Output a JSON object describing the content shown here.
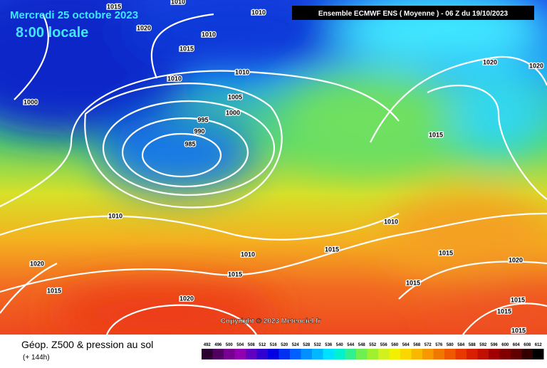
{
  "header": {
    "date": "Mercredi 25 octobre 2023",
    "time": "8:00 locale",
    "run": "Ensemble ECMWF ENS  ( Moyenne )  - 06 Z du 19/10/2023"
  },
  "isobar_labels": [
    1015,
    1010,
    1010,
    1020,
    1010,
    1015,
    1010,
    1010,
    1005,
    1000,
    1000,
    995,
    990,
    985,
    1015,
    1020,
    1020,
    1010,
    1010,
    1015,
    1015,
    1010,
    1020,
    1020,
    1015,
    1015,
    1015,
    1020,
    1015,
    1015,
    1015
  ],
  "copyright": "Copyright © 2023 Meteociel.fr",
  "footer": {
    "title": "Géop. Z500 & pression au sol",
    "lead": "(+ 144h)"
  },
  "scale": [
    492,
    496,
    500,
    504,
    508,
    512,
    516,
    520,
    524,
    528,
    532,
    536,
    540,
    544,
    548,
    552,
    556,
    560,
    564,
    568,
    572,
    576,
    580,
    584,
    588,
    592,
    596,
    600,
    604,
    608,
    612
  ]
}
